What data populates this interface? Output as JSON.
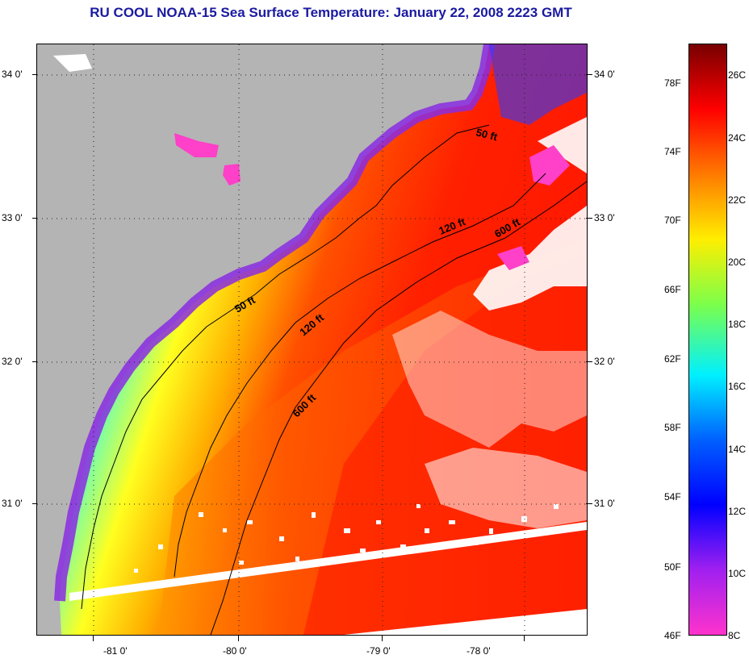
{
  "title": "RU COOL  NOAA-15  Sea Surface Temperature:  January 22, 2008 2223 GMT",
  "map": {
    "lat_labels": [
      "34 0'",
      "33 0'",
      "32 0'",
      "31 0'"
    ],
    "lon_labels": [
      "-81 0'",
      "-80 0'",
      "-79 0'",
      "-78 0'"
    ],
    "depth_contour_labels": [
      "50 ft",
      "120 ft",
      "600 ft",
      "50 ft",
      "120 ft",
      "600 ft"
    ],
    "colors": {
      "land": "#b4b4b4",
      "cloud": "#ffffff",
      "frame": "#000000"
    }
  },
  "colorbar": {
    "fahrenheit_labels": [
      "78F",
      "74F",
      "70F",
      "66F",
      "62F",
      "58F",
      "54F",
      "50F",
      "46F"
    ],
    "celsius_labels": [
      "26C",
      "24C",
      "22C",
      "20C",
      "18C",
      "16C",
      "14C",
      "12C",
      "10C",
      "8C"
    ],
    "gradient_colors": [
      "#780000",
      "#ff0000",
      "#ff7a00",
      "#ffee00",
      "#7cff4a",
      "#00f0ff",
      "#0060ff",
      "#0000ff",
      "#a020f0",
      "#ff33cc"
    ]
  }
}
